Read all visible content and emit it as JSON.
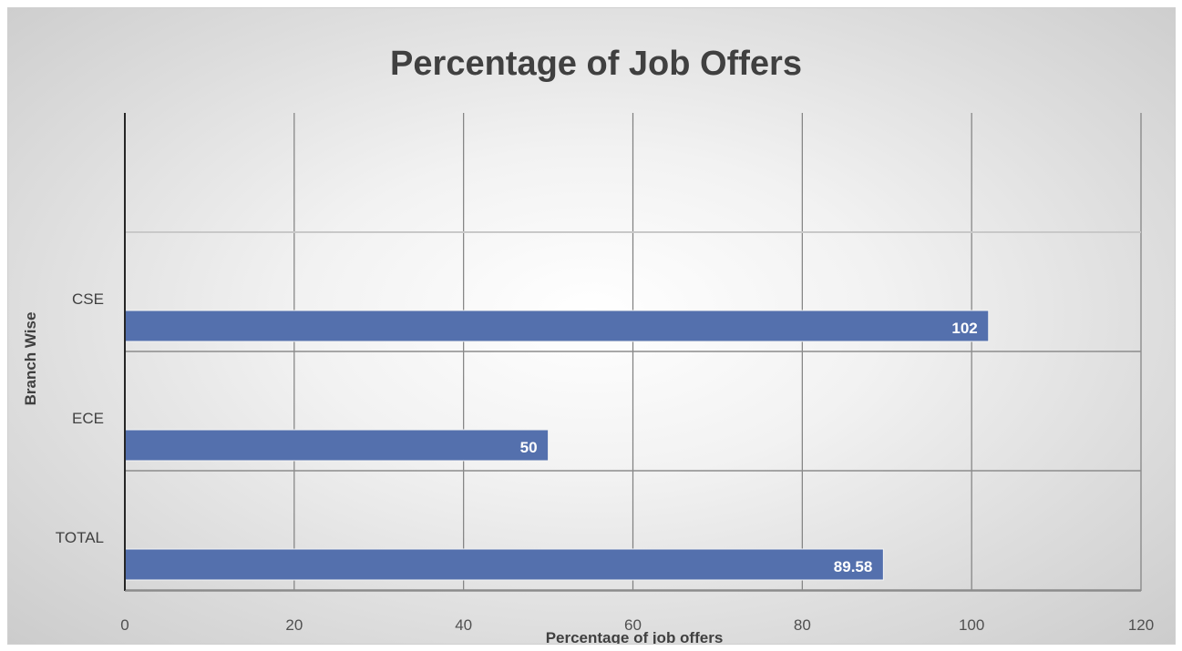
{
  "chart_data": {
    "type": "bar",
    "orientation": "horizontal",
    "title": "Percentage of Job Offers",
    "xlabel": "Percentage of  job offers",
    "ylabel": "Branch Wise",
    "categories": [
      "CSE",
      "ECE",
      "TOTAL"
    ],
    "values": [
      102,
      50,
      89.58
    ],
    "data_labels": [
      "102",
      "50",
      "89.58"
    ],
    "xlim": [
      0,
      120
    ],
    "xticks": [
      0,
      20,
      40,
      60,
      80,
      100,
      120
    ],
    "xtick_labels": [
      "0",
      "20",
      "40",
      "60",
      "80",
      "100",
      "120"
    ],
    "grid": true,
    "legend": "none",
    "bar_color": "#5470ad"
  }
}
